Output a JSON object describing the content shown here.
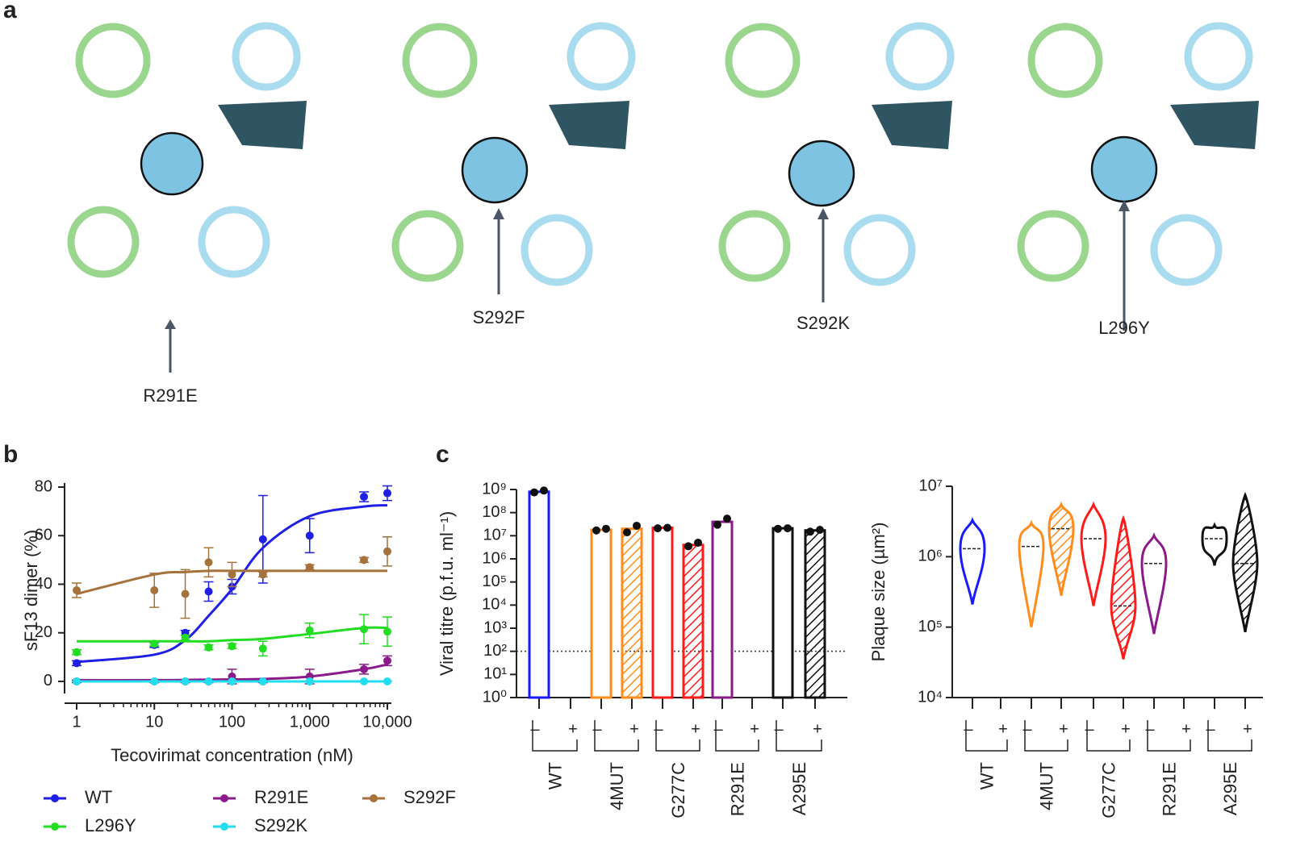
{
  "panels": {
    "a": {
      "letter": "a",
      "mutations": [
        "R291E",
        "S292F",
        "S292K",
        "L296Y"
      ]
    },
    "b": {
      "letter": "b"
    },
    "c": {
      "letter": "c"
    }
  },
  "chart_data": [
    {
      "type": "line",
      "x_label": "Tecovirimat concentration (nM)",
      "y_label": "sF13 dimer (%)",
      "log_x": true,
      "x": [
        1,
        10,
        25,
        50,
        100,
        250,
        1000,
        5000,
        10000
      ],
      "xlim": [
        1,
        10000
      ],
      "xticks": [
        1,
        10,
        100,
        {
          "value": 1000,
          "label": "1,000"
        },
        {
          "value": 10000,
          "label": "10,000"
        }
      ],
      "ylim": [
        -5,
        80
      ],
      "yticks": [
        0,
        20,
        40,
        60,
        80
      ],
      "series": [
        {
          "name": "WT",
          "color": "#1f1fe6",
          "values": [
            7.5,
            15,
            20,
            37,
            39,
            58.5,
            60,
            76,
            77.5
          ],
          "errors": [
            1,
            1,
            1,
            4,
            3,
            18,
            7,
            2,
            3
          ],
          "fit": [
            8,
            11,
            17,
            27,
            38,
            55,
            68,
            72,
            72.5
          ]
        },
        {
          "name": "R291E",
          "color": "#8b1a8b",
          "values": [
            0,
            0,
            0,
            0,
            2,
            0,
            2,
            5,
            8.5
          ],
          "errors": [
            0.5,
            0.5,
            0.5,
            0.5,
            3,
            0.5,
            3,
            2,
            2
          ],
          "fit": [
            0.5,
            0.5,
            0.6,
            0.7,
            0.8,
            1,
            2,
            5,
            7
          ]
        },
        {
          "name": "S292F",
          "color": "#a5723c",
          "values": [
            37.5,
            37.5,
            36,
            49,
            44,
            44,
            47,
            50,
            53.5
          ],
          "errors": [
            3,
            7,
            10,
            6,
            5,
            1,
            1,
            1,
            6
          ],
          "fit": [
            36,
            44,
            45,
            45.5,
            45.5,
            45.5,
            45.5,
            45.5,
            45.5
          ]
        },
        {
          "name": "L296Y",
          "color": "#22dd22",
          "values": [
            12,
            15.5,
            18,
            14,
            14.5,
            13.5,
            21,
            21.5,
            20.5
          ],
          "errors": [
            1,
            1,
            1,
            1,
            1,
            3,
            3,
            6,
            6
          ],
          "fit": [
            16.5,
            16.5,
            16.5,
            16.5,
            17,
            17.5,
            19.5,
            22,
            22
          ]
        },
        {
          "name": "S292K",
          "color": "#22ddee",
          "values": [
            0,
            0,
            0,
            0,
            0,
            0,
            0,
            0,
            0
          ],
          "errors": [
            0,
            0,
            0,
            0,
            0,
            0,
            0,
            0,
            0
          ],
          "fit": [
            0,
            0,
            0,
            0,
            0,
            0,
            0,
            0,
            0
          ]
        }
      ]
    },
    {
      "type": "bar",
      "y_label": "Viral titre (p.f.u. ml⁻¹)",
      "log_y": true,
      "detection_limit": 100,
      "categories": [
        "WT",
        "4MUT",
        "G277C",
        "R291E",
        "A295E"
      ],
      "colors": [
        "#1a1aff",
        "#ff8c1a",
        "#ff1a1a",
        "#8b1a8b",
        "#111111"
      ],
      "ylim": [
        1,
        1000000000
      ],
      "yticks": [
        {
          "value": 1,
          "label": "10⁰"
        },
        {
          "value": 10,
          "label": "10¹"
        },
        {
          "value": 100,
          "label": "10²"
        },
        {
          "value": 1000,
          "label": "10³"
        },
        {
          "value": 10000,
          "label": "10⁴"
        },
        {
          "value": 100000,
          "label": "10⁵"
        },
        {
          "value": 1000000,
          "label": "10⁶"
        },
        {
          "value": 10000000,
          "label": "10⁷"
        },
        {
          "value": 100000000,
          "label": "10⁸"
        },
        {
          "value": 1000000000,
          "label": "10⁹"
        }
      ],
      "series": [
        {
          "name": "–",
          "hatched": false,
          "values": [
            800000000,
            18000000,
            22000000,
            40000000,
            21000000
          ],
          "points": [
            [
              750000000,
              900000000
            ],
            [
              17000000,
              20000000
            ],
            [
              21000000,
              22000000
            ],
            [
              30000000,
              55000000
            ],
            [
              20000000,
              21000000
            ]
          ]
        },
        {
          "name": "+",
          "hatched": true,
          "values": [
            null,
            20000000,
            4000000,
            null,
            17000000
          ],
          "points": [
            [
              null,
              null
            ],
            [
              14000000,
              27000000
            ],
            [
              3500000,
              5000000
            ],
            [
              null,
              null
            ],
            [
              15000000,
              18000000
            ]
          ]
        }
      ]
    },
    {
      "type": "violin",
      "y_label": "Plaque size (µm²)",
      "log_y": true,
      "categories": [
        "WT",
        "4MUT",
        "G277C",
        "R291E",
        "A295E"
      ],
      "colors": [
        "#1a1aff",
        "#ff8c1a",
        "#ff1a1a",
        "#8b1a8b",
        "#111111"
      ],
      "ylim": [
        10000,
        10000000
      ],
      "yticks": [
        {
          "value": 10000,
          "label": "10⁴"
        },
        {
          "value": 100000,
          "label": "10⁵"
        },
        {
          "value": 1000000,
          "label": "10⁶"
        },
        {
          "value": 10000000,
          "label": "10⁷"
        }
      ],
      "series": [
        {
          "name": "–",
          "hatched": false,
          "min": [
            210000,
            100000,
            200000,
            80000,
            750000
          ],
          "values": [
            1300000,
            1400000,
            1800000,
            800000,
            1800000
          ],
          "max": [
            3300000,
            3000000,
            5500000,
            2000000,
            2800000
          ]
        },
        {
          "name": "+",
          "hatched": true,
          "min": [
            null,
            280000,
            35000,
            null,
            85000
          ],
          "values": [
            null,
            2500000,
            200000,
            null,
            800000
          ],
          "max": [
            null,
            5500000,
            3500000,
            null,
            7500000
          ]
        }
      ]
    }
  ]
}
